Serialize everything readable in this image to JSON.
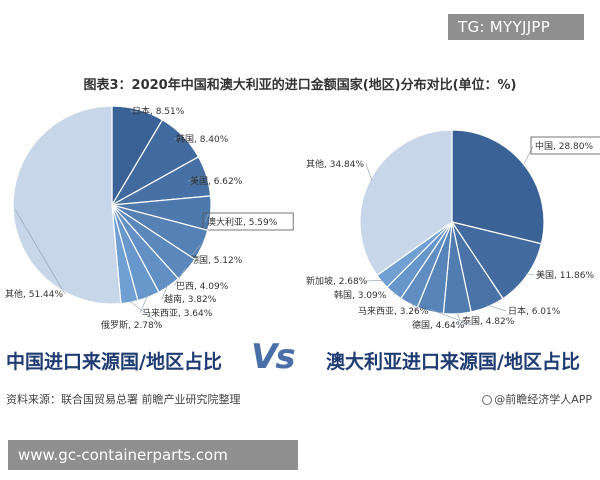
{
  "watermark_top": "TG: MYYJJPP",
  "title": "图表3：2020年中国和澳大利亚的进口金额国家(地区)分布对比(单位：%)",
  "vs_label": "Vs",
  "source": "资料来源：联合国贸易总署 前瞻产业研究院整理",
  "brand": "@前瞻经济学人APP",
  "url_banner": "www.gc-containerparts.com",
  "colors": {
    "dark": "#3a6296",
    "light": "#c7d6e9",
    "title_blue": "#1f3c73"
  },
  "chart_data": [
    {
      "type": "pie",
      "title": "中国进口来源国/地区占比",
      "slices": [
        {
          "label": "日本",
          "value": 8.51,
          "text": "日本, 8.51%"
        },
        {
          "label": "韩国",
          "value": 8.4,
          "text": "韩国, 8.40%"
        },
        {
          "label": "美国",
          "value": 6.62,
          "text": "美国, 6.62%"
        },
        {
          "label": "澳大利亚",
          "value": 5.59,
          "text": "澳大利亚, 5.59%"
        },
        {
          "label": "德国",
          "value": 5.12,
          "text": "德国, 5.12%"
        },
        {
          "label": "巴西",
          "value": 4.09,
          "text": "巴西, 4.09%"
        },
        {
          "label": "越南",
          "value": 3.82,
          "text": "越南, 3.82%"
        },
        {
          "label": "马来西亚",
          "value": 3.64,
          "text": "马来西亚, 3.64%"
        },
        {
          "label": "俄罗斯",
          "value": 2.78,
          "text": "俄罗斯, 2.78%"
        },
        {
          "label": "其他",
          "value": 51.44,
          "text": "其他, 51.44%"
        }
      ]
    },
    {
      "type": "pie",
      "title": "澳大利亚进口来源国/地区占比",
      "slices": [
        {
          "label": "中国",
          "value": 28.8,
          "text": "中国, 28.80%"
        },
        {
          "label": "美国",
          "value": 11.86,
          "text": "美国, 11.86%"
        },
        {
          "label": "日本",
          "value": 6.01,
          "text": "日本, 6.01%"
        },
        {
          "label": "泰国",
          "value": 4.82,
          "text": "泰国, 4.82%"
        },
        {
          "label": "德国",
          "value": 4.64,
          "text": "德国, 4.64%"
        },
        {
          "label": "马来西亚",
          "value": 3.26,
          "text": "马来西亚, 3.26%"
        },
        {
          "label": "韩国",
          "value": 3.09,
          "text": "韩国, 3.09%"
        },
        {
          "label": "新加坡",
          "value": 2.68,
          "text": "新加坡, 2.68%"
        },
        {
          "label": "其他",
          "value": 34.84,
          "text": "其他, 34.84%"
        }
      ]
    }
  ]
}
